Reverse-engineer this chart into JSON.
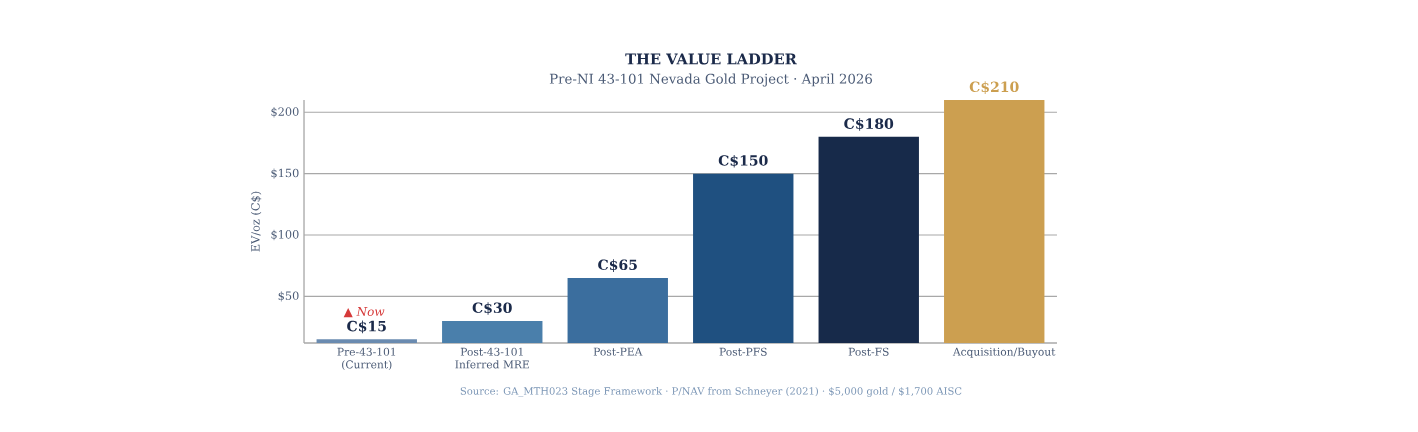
{
  "chart_data": {
    "type": "bar",
    "title": "THE VALUE LADDER",
    "subtitle": "Pre-NI 43-101 Nevada Gold Project · April 2026",
    "ylabel": "EV/oz (C$)",
    "categories": [
      "Pre-43-101 (Current)",
      "Post-43-101 Inferred MRE",
      "Post-PEA",
      "Post-PFS",
      "Post-FS",
      "Acquisition/Buyout"
    ],
    "values": [
      15,
      30,
      65,
      150,
      180,
      210
    ],
    "colors": [
      "#6a8bb0",
      "#4a7fab",
      "#3b6e9e",
      "#1f5080",
      "#172a4a",
      "#cc9f50"
    ],
    "value_labels": [
      "C$15",
      "C$30",
      "C$65",
      "C$150",
      "C$180",
      "C$210"
    ],
    "ylim": [
      12,
      210
    ],
    "yticks": [
      {
        "value": 50,
        "label": "$50"
      },
      {
        "value": 100,
        "label": "$100"
      },
      {
        "value": 150,
        "label": "$150"
      },
      {
        "value": 200,
        "label": "$200"
      }
    ],
    "grid": "y",
    "annotations": [
      {
        "text": "▲ *Now*",
        "x": "Pre-43-101 (Current)",
        "y": 15
      },
      "Source: GA_MTH023 Stage Framework · P/NAV from Schneyer (2021) · $5,000 gold / $1,700 AISC"
    ]
  }
}
